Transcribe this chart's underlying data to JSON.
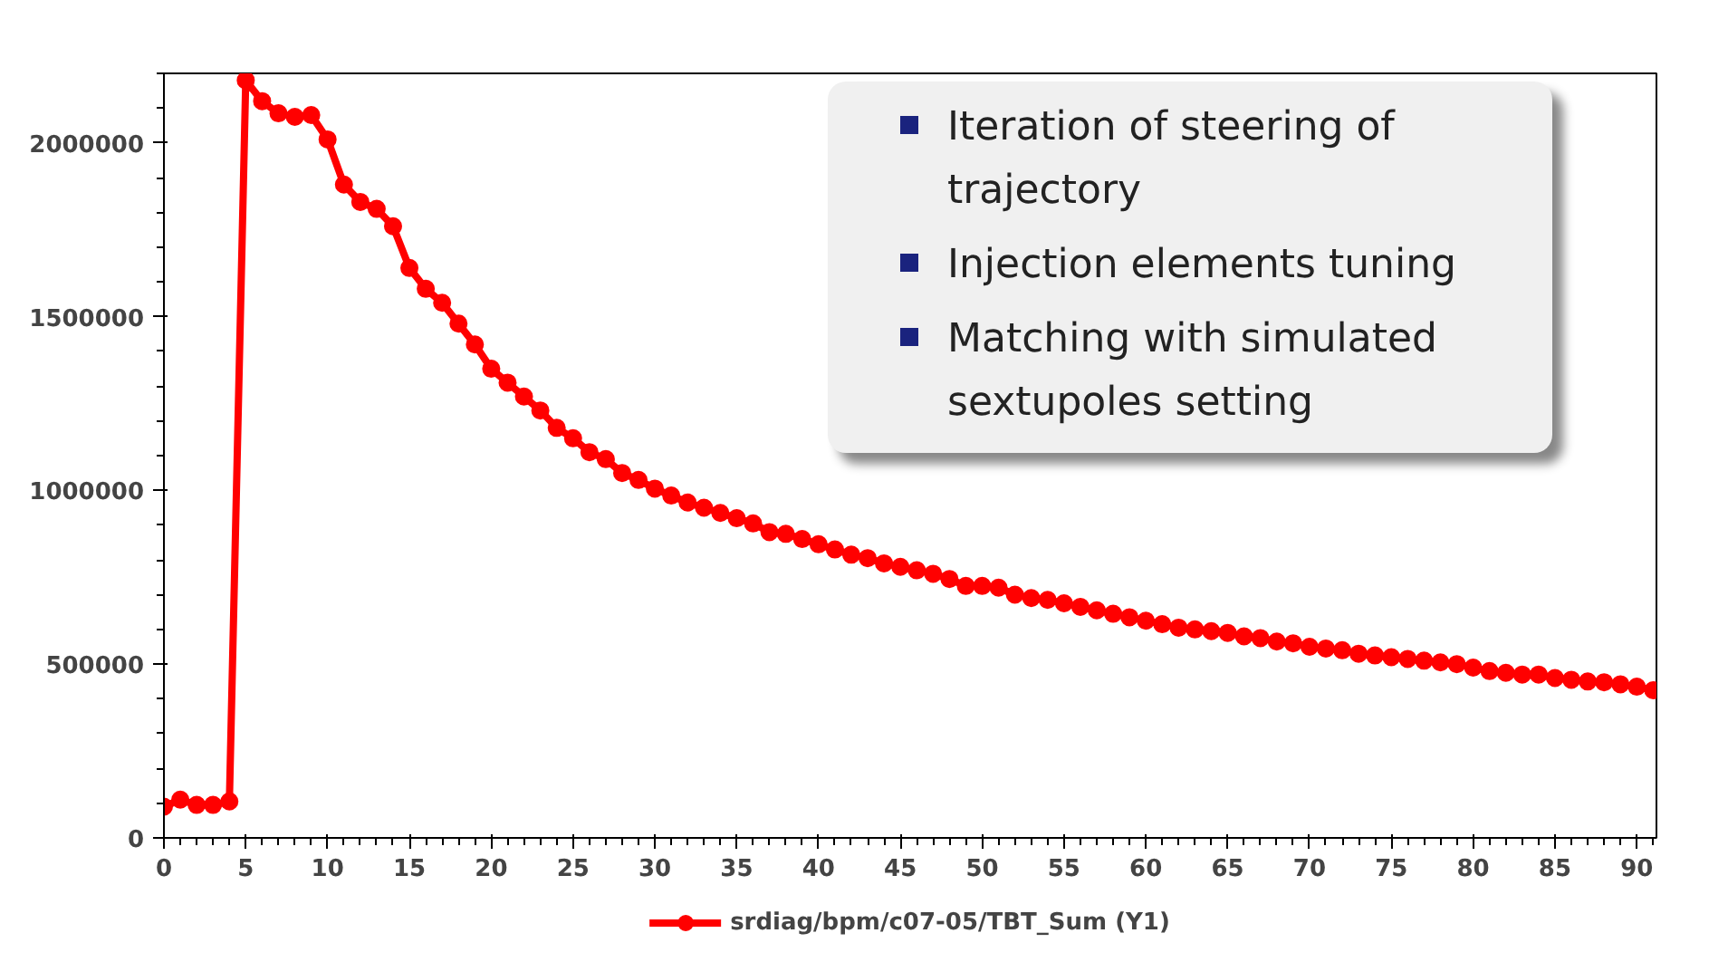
{
  "chart_data": {
    "type": "line",
    "x": [
      0,
      1,
      2,
      3,
      4,
      5,
      6,
      7,
      8,
      9,
      10,
      11,
      12,
      13,
      14,
      15,
      16,
      17,
      18,
      19,
      20,
      21,
      22,
      23,
      24,
      25,
      26,
      27,
      28,
      29,
      30,
      31,
      32,
      33,
      34,
      35,
      36,
      37,
      38,
      39,
      40,
      41,
      42,
      43,
      44,
      45,
      46,
      47,
      48,
      49,
      50,
      51,
      52,
      53,
      54,
      55,
      56,
      57,
      58,
      59,
      60,
      61,
      62,
      63,
      64,
      65,
      66,
      67,
      68,
      69,
      70,
      71,
      72,
      73,
      74,
      75,
      76,
      77,
      78,
      79,
      80,
      81,
      82,
      83,
      84,
      85,
      86,
      87,
      88,
      89,
      90,
      91
    ],
    "series": [
      {
        "name": "srdiag/bpm/c07-05/TBT_Sum (Y1)",
        "color": "#ff0000",
        "values": [
          90000,
          110000,
          95000,
          95000,
          105000,
          2180000,
          2120000,
          2085000,
          2075000,
          2080000,
          2010000,
          1880000,
          1830000,
          1810000,
          1760000,
          1640000,
          1580000,
          1540000,
          1480000,
          1420000,
          1350000,
          1310000,
          1270000,
          1230000,
          1180000,
          1150000,
          1110000,
          1090000,
          1050000,
          1030000,
          1005000,
          985000,
          965000,
          950000,
          935000,
          920000,
          905000,
          880000,
          875000,
          860000,
          845000,
          830000,
          815000,
          805000,
          790000,
          780000,
          770000,
          760000,
          745000,
          725000,
          725000,
          720000,
          700000,
          690000,
          685000,
          675000,
          665000,
          655000,
          645000,
          635000,
          625000,
          615000,
          605000,
          600000,
          595000,
          590000,
          580000,
          575000,
          565000,
          560000,
          550000,
          545000,
          540000,
          530000,
          525000,
          520000,
          515000,
          510000,
          505000,
          500000,
          490000,
          480000,
          475000,
          470000,
          470000,
          460000,
          455000,
          450000,
          448000,
          442000,
          435000,
          425000
        ]
      }
    ],
    "xlim": [
      0,
      91.2
    ],
    "ylim": [
      0,
      2200000
    ],
    "xticks": [
      0,
      5,
      10,
      15,
      20,
      25,
      30,
      35,
      40,
      45,
      50,
      55,
      60,
      65,
      70,
      75,
      80,
      85,
      90
    ],
    "yticks": [
      0,
      500000,
      1000000,
      1500000,
      2000000
    ],
    "grid": false,
    "legend": "bottom",
    "marker": "circle",
    "line_style": "solid",
    "annotations": [
      "Iteration of steering of trajectory",
      "Injection elements tuning",
      "Matching with simulated sextupoles setting"
    ]
  }
}
